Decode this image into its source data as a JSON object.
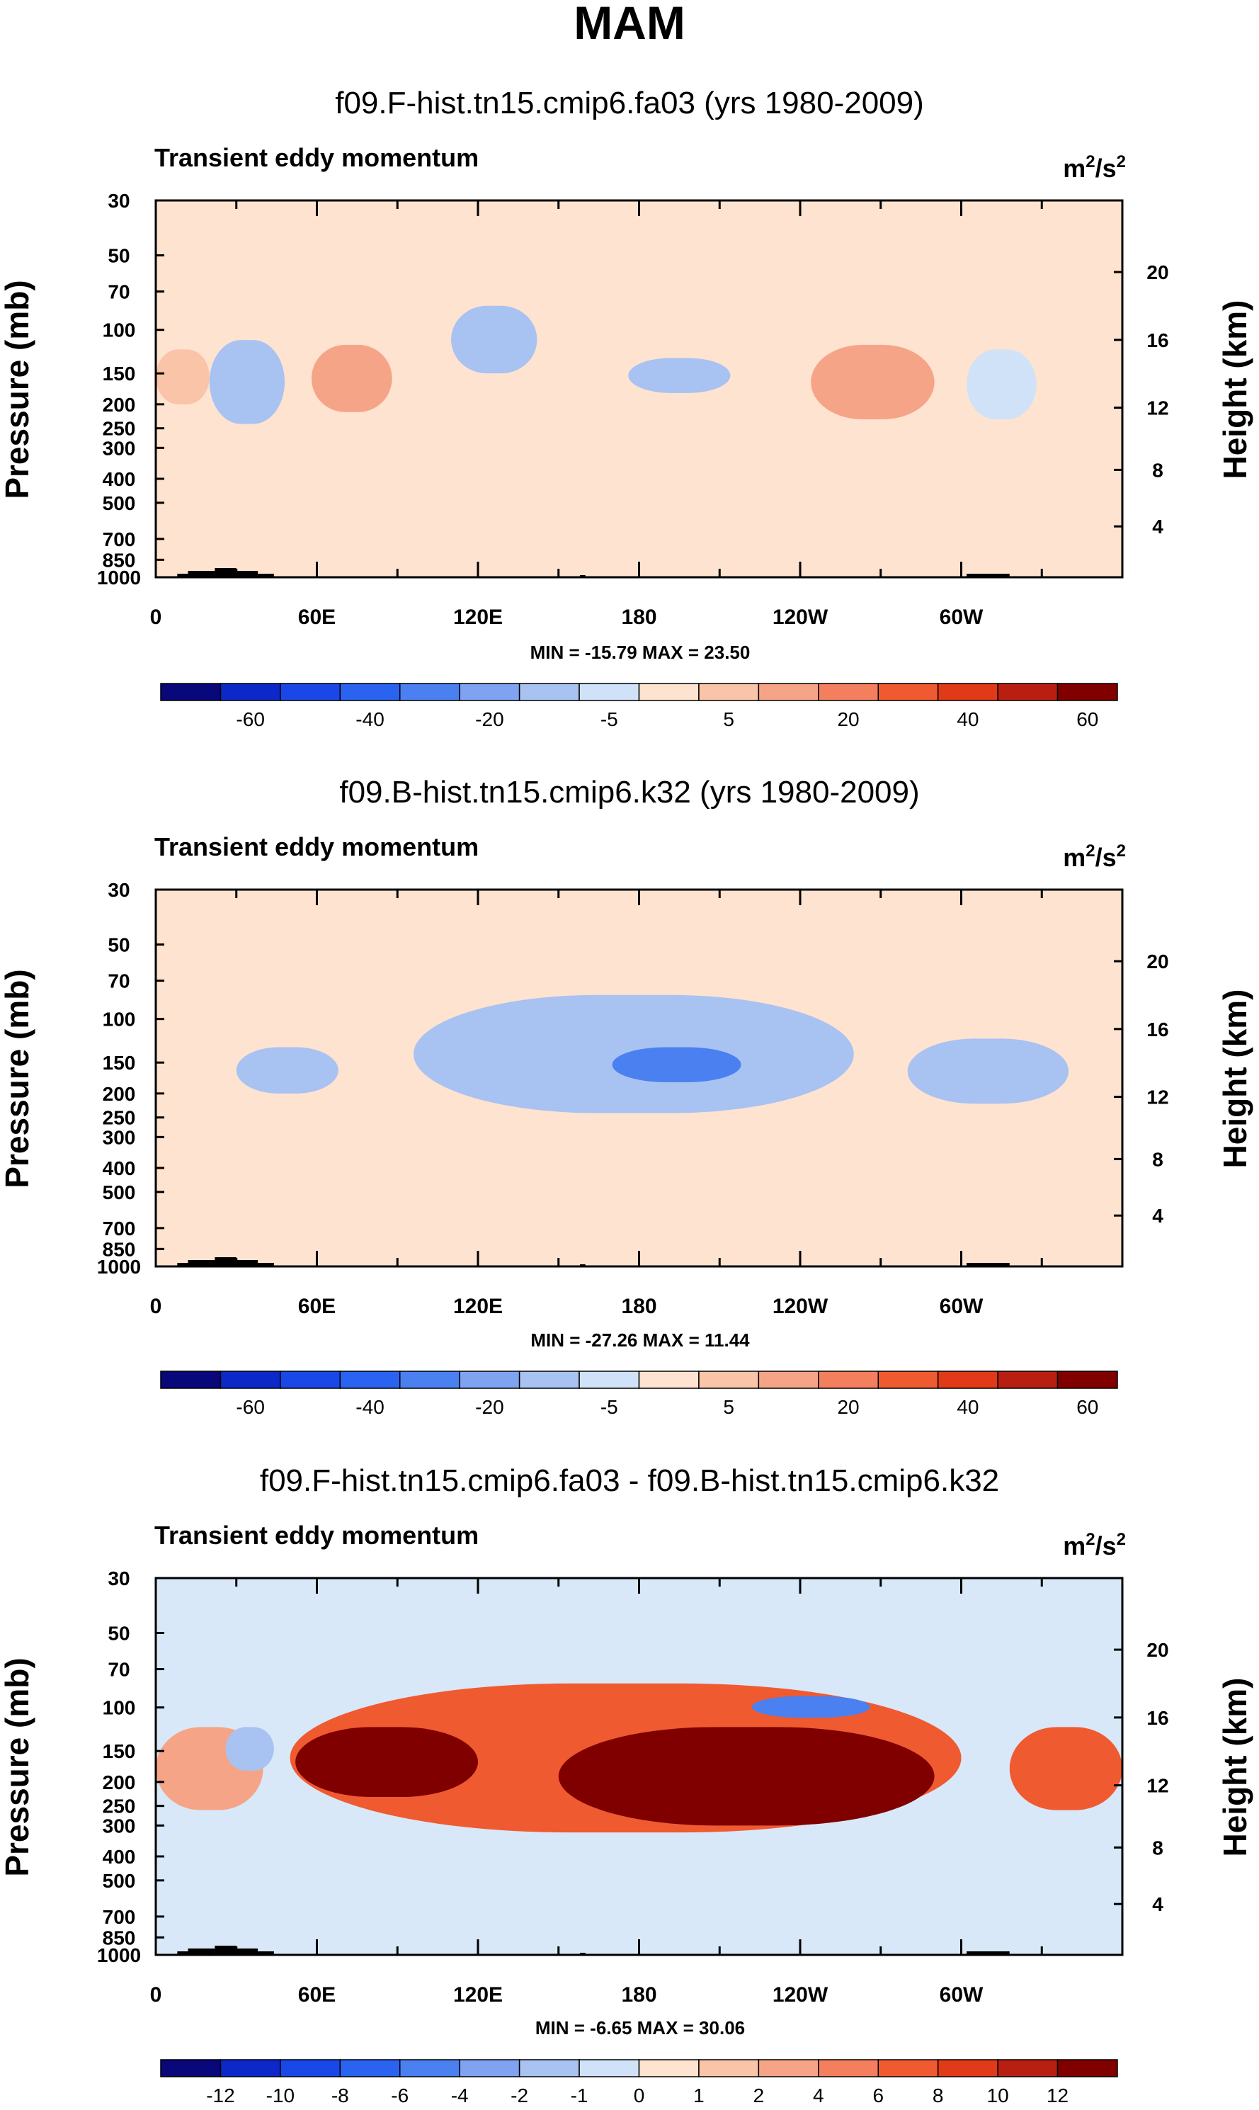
{
  "page_title": "MAM",
  "chart_data": [
    {
      "type": "heatmap",
      "title": "f09.F-hist.tn15.cmip6.fa03 (yrs 1980-2009)",
      "subtitle": "Transient eddy momentum",
      "units_base": "m",
      "units_exp1": "2",
      "units_mid": "/s",
      "units_exp2": "2",
      "ylabel": "Pressure (mb)",
      "ylabel_right": "Height (km)",
      "y_ticks": [
        "30",
        "50",
        "70",
        "100",
        "150",
        "200",
        "250",
        "300",
        "400",
        "500",
        "700",
        "850",
        "1000"
      ],
      "y_tick_values": [
        30,
        50,
        70,
        100,
        150,
        200,
        250,
        300,
        400,
        500,
        700,
        850,
        1000
      ],
      "y_right_ticks": [
        "20",
        "16",
        "12",
        "8",
        "4"
      ],
      "x_ticks": [
        "0",
        "60E",
        "120E",
        "180",
        "120W",
        "60W"
      ],
      "x_tick_values": [
        0,
        60,
        120,
        180,
        240,
        300
      ],
      "xlim": [
        0,
        360
      ],
      "ylim": [
        30,
        1000
      ],
      "stats": "MIN = -15.79  MAX = 23.50",
      "colorbar_labels": [
        "-60",
        "-40",
        "-20",
        "-5",
        "5",
        "20",
        "40",
        "60"
      ],
      "background_color": "#fde3d0",
      "features": [
        {
          "lon": [
            0,
            20
          ],
          "p": [
            120,
            200
          ],
          "level": "pos1"
        },
        {
          "lon": [
            58,
            88
          ],
          "p": [
            115,
            215
          ],
          "level": "pos2"
        },
        {
          "lon": [
            244,
            290
          ],
          "p": [
            115,
            230
          ],
          "level": "pos2"
        },
        {
          "lon": [
            20,
            48
          ],
          "p": [
            110,
            240
          ],
          "level": "neg2"
        },
        {
          "lon": [
            110,
            142
          ],
          "p": [
            80,
            150
          ],
          "level": "neg2"
        },
        {
          "lon": [
            176,
            214
          ],
          "p": [
            130,
            180
          ],
          "level": "neg2"
        },
        {
          "lon": [
            302,
            328
          ],
          "p": [
            120,
            230
          ],
          "level": "neg1"
        }
      ]
    },
    {
      "type": "heatmap",
      "title": "f09.B-hist.tn15.cmip6.k32 (yrs 1980-2009)",
      "subtitle": "Transient eddy momentum",
      "units_base": "m",
      "units_exp1": "2",
      "units_mid": "/s",
      "units_exp2": "2",
      "ylabel": "Pressure (mb)",
      "ylabel_right": "Height (km)",
      "y_ticks": [
        "30",
        "50",
        "70",
        "100",
        "150",
        "200",
        "250",
        "300",
        "400",
        "500",
        "700",
        "850",
        "1000"
      ],
      "y_tick_values": [
        30,
        50,
        70,
        100,
        150,
        200,
        250,
        300,
        400,
        500,
        700,
        850,
        1000
      ],
      "y_right_ticks": [
        "20",
        "16",
        "12",
        "8",
        "4"
      ],
      "x_ticks": [
        "0",
        "60E",
        "120E",
        "180",
        "120W",
        "60W"
      ],
      "x_tick_values": [
        0,
        60,
        120,
        180,
        240,
        300
      ],
      "xlim": [
        0,
        360
      ],
      "ylim": [
        30,
        1000
      ],
      "stats": "MIN = -27.26  MAX = 11.44",
      "colorbar_labels": [
        "-60",
        "-40",
        "-20",
        "-5",
        "5",
        "20",
        "40",
        "60"
      ],
      "background_color": "#fde3d0",
      "features": [
        {
          "lon": [
            30,
            68
          ],
          "p": [
            130,
            200
          ],
          "level": "neg2"
        },
        {
          "lon": [
            96,
            260
          ],
          "p": [
            80,
            240
          ],
          "level": "neg2"
        },
        {
          "lon": [
            170,
            218
          ],
          "p": [
            130,
            180
          ],
          "level": "neg3"
        },
        {
          "lon": [
            280,
            340
          ],
          "p": [
            120,
            220
          ],
          "level": "neg2"
        }
      ]
    },
    {
      "type": "heatmap",
      "title": "f09.F-hist.tn15.cmip6.fa03 - f09.B-hist.tn15.cmip6.k32",
      "subtitle": "Transient eddy momentum",
      "units_base": "m",
      "units_exp1": "2",
      "units_mid": "/s",
      "units_exp2": "2",
      "ylabel": "Pressure (mb)",
      "ylabel_right": "Height (km)",
      "y_ticks": [
        "30",
        "50",
        "70",
        "100",
        "150",
        "200",
        "250",
        "300",
        "400",
        "500",
        "700",
        "850",
        "1000"
      ],
      "y_tick_values": [
        30,
        50,
        70,
        100,
        150,
        200,
        250,
        300,
        400,
        500,
        700,
        850,
        1000
      ],
      "y_right_ticks": [
        "20",
        "16",
        "12",
        "8",
        "4"
      ],
      "x_ticks": [
        "0",
        "60E",
        "120E",
        "180",
        "120W",
        "60W"
      ],
      "x_tick_values": [
        0,
        60,
        120,
        180,
        240,
        300
      ],
      "xlim": [
        0,
        360
      ],
      "ylim": [
        30,
        1000
      ],
      "stats": "MIN = -6.65  MAX = 30.06",
      "colorbar_labels": [
        "-12",
        "-10",
        "-8",
        "-6",
        "-4",
        "-2",
        "-1",
        "0",
        "1",
        "2",
        "4",
        "6",
        "8",
        "10",
        "12"
      ],
      "background_color": "#d8e8f8",
      "features": [
        {
          "lon": [
            0,
            40
          ],
          "p": [
            120,
            260
          ],
          "level": "pos2"
        },
        {
          "lon": [
            50,
            300
          ],
          "p": [
            80,
            320
          ],
          "level": "pos3"
        },
        {
          "lon": [
            52,
            120
          ],
          "p": [
            120,
            230
          ],
          "level": "pos5"
        },
        {
          "lon": [
            150,
            290
          ],
          "p": [
            120,
            300
          ],
          "level": "pos5"
        },
        {
          "lon": [
            318,
            360
          ],
          "p": [
            120,
            260
          ],
          "level": "pos3"
        },
        {
          "lon": [
            26,
            44
          ],
          "p": [
            120,
            180
          ],
          "level": "neg2"
        },
        {
          "lon": [
            222,
            266
          ],
          "p": [
            90,
            110
          ],
          "level": "neg3"
        }
      ]
    }
  ],
  "colors": {
    "ramp": [
      "#08087a",
      "#0d28c8",
      "#1a48e8",
      "#2a63f0",
      "#4a80f0",
      "#7fa3f0",
      "#a8c2f2",
      "#d0e2f8",
      "#fde3d0",
      "#f9c4a8",
      "#f6a487",
      "#f47f5e",
      "#f05a30",
      "#e03a18",
      "#b81f10",
      "#800000"
    ],
    "pos1": "#f9c4a8",
    "pos2": "#f6a487",
    "pos3": "#f05a30",
    "pos5": "#800000",
    "neg1": "#d0e2f8",
    "neg2": "#a8c2f2",
    "neg3": "#4a80f0",
    "terrain": "#000000"
  }
}
